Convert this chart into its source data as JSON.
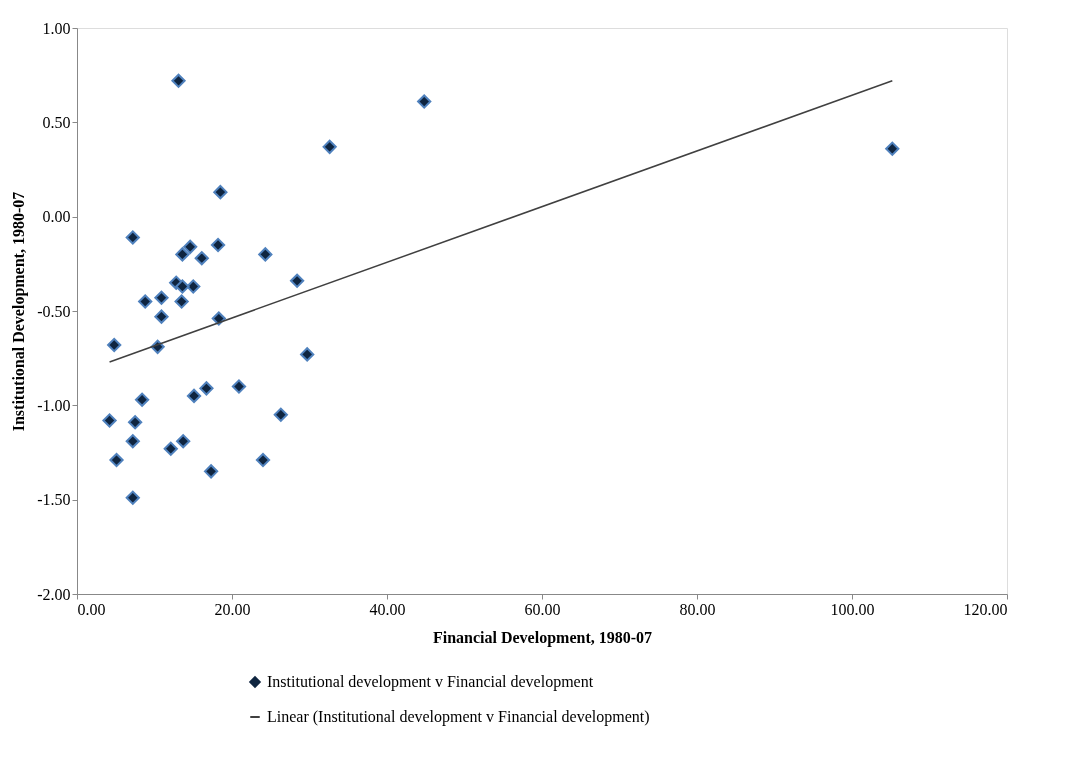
{
  "chart_data": {
    "type": "scatter",
    "xlabel": "Financial Development, 1980-07",
    "ylabel": "Institutional Development,  1980-07",
    "xlim": [
      0,
      120
    ],
    "ylim": [
      -2,
      1
    ],
    "xticks": [
      {
        "value": 0,
        "label": "0.00"
      },
      {
        "value": 20,
        "label": "20.00"
      },
      {
        "value": 40,
        "label": "40.00"
      },
      {
        "value": 60,
        "label": "60.00"
      },
      {
        "value": 80,
        "label": "80.00"
      },
      {
        "value": 100,
        "label": "100.00"
      },
      {
        "value": 120,
        "label": "120.00"
      }
    ],
    "yticks": [
      {
        "value": -2,
        "label": "-2.00"
      },
      {
        "value": -1.5,
        "label": "-1.50"
      },
      {
        "value": -1,
        "label": "-1.00"
      },
      {
        "value": -0.5,
        "label": "-0.50"
      },
      {
        "value": 0,
        "label": "0.00"
      },
      {
        "value": 0.5,
        "label": "0.50"
      },
      {
        "value": 1,
        "label": "1.00"
      }
    ],
    "grid": false,
    "legend": "bottom",
    "series": [
      {
        "name": "Institutional development v Financial development",
        "marker": "diamond",
        "color": "#0f2540",
        "x": [
          13.1,
          44.8,
          32.6,
          105.2,
          18.5,
          7.2,
          14.6,
          13.6,
          16.1,
          18.2,
          24.3,
          28.4,
          12.8,
          15.0,
          13.6,
          8.8,
          10.9,
          13.5,
          10.9,
          18.3,
          4.8,
          10.4,
          29.7,
          16.7,
          15.1,
          20.9,
          8.4,
          26.3,
          4.2,
          7.5,
          7.2,
          12.1,
          13.7,
          5.1,
          24.0,
          17.3,
          7.2
        ],
        "values": [
          0.72,
          0.61,
          0.37,
          0.36,
          0.13,
          -0.11,
          -0.16,
          -0.2,
          -0.22,
          -0.15,
          -0.2,
          -0.34,
          -0.35,
          -0.37,
          -0.37,
          -0.45,
          -0.43,
          -0.45,
          -0.53,
          -0.54,
          -0.68,
          -0.69,
          -0.73,
          -0.91,
          -0.95,
          -0.9,
          -0.97,
          -1.05,
          -1.08,
          -1.09,
          -1.19,
          -1.23,
          -1.19,
          -1.29,
          -1.29,
          -1.35,
          -1.49
        ]
      },
      {
        "name": "Linear (Institutional development v Financial development)",
        "type": "line",
        "marker": "none",
        "line_style": "solid",
        "color": "#404040",
        "x": [
          4.2,
          105.2
        ],
        "values": [
          -0.77,
          0.72
        ]
      }
    ]
  }
}
